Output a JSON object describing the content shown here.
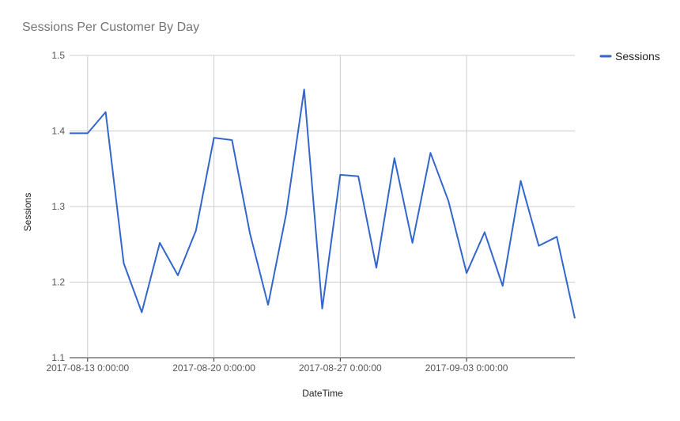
{
  "chart_data": {
    "type": "line",
    "title": "Sessions Per Customer By Day",
    "xlabel": "DateTime",
    "ylabel": "Sessions",
    "ylim": [
      1.1,
      1.5
    ],
    "yticks": [
      "1.1",
      "1.2",
      "1.3",
      "1.4",
      "1.5"
    ],
    "xticks": [
      {
        "date": "2017-08-13",
        "label": "2017-08-13 0:00:00"
      },
      {
        "date": "2017-08-20",
        "label": "2017-08-20 0:00:00"
      },
      {
        "date": "2017-08-27",
        "label": "2017-08-27 0:00:00"
      },
      {
        "date": "2017-09-03",
        "label": "2017-09-03 0:00:00"
      }
    ],
    "xlim": [
      "2017-08-12",
      "2017-09-09"
    ],
    "grid": true,
    "legend_position": "right",
    "x": [
      "2017-08-12",
      "2017-08-13",
      "2017-08-14",
      "2017-08-15",
      "2017-08-16",
      "2017-08-17",
      "2017-08-18",
      "2017-08-19",
      "2017-08-20",
      "2017-08-21",
      "2017-08-22",
      "2017-08-23",
      "2017-08-24",
      "2017-08-25",
      "2017-08-26",
      "2017-08-27",
      "2017-08-28",
      "2017-08-29",
      "2017-08-30",
      "2017-08-31",
      "2017-09-01",
      "2017-09-02",
      "2017-09-03",
      "2017-09-04",
      "2017-09-05",
      "2017-09-06",
      "2017-09-07",
      "2017-09-08",
      "2017-09-09"
    ],
    "series": [
      {
        "name": "Sessions",
        "color": "#3366cc",
        "values": [
          1.397,
          1.397,
          1.425,
          1.225,
          1.16,
          1.252,
          1.209,
          1.268,
          1.391,
          1.388,
          1.264,
          1.17,
          1.29,
          1.455,
          1.165,
          1.342,
          1.34,
          1.219,
          1.364,
          1.252,
          1.371,
          1.307,
          1.212,
          1.266,
          1.195,
          1.334,
          1.248,
          1.26,
          1.152
        ]
      }
    ]
  }
}
